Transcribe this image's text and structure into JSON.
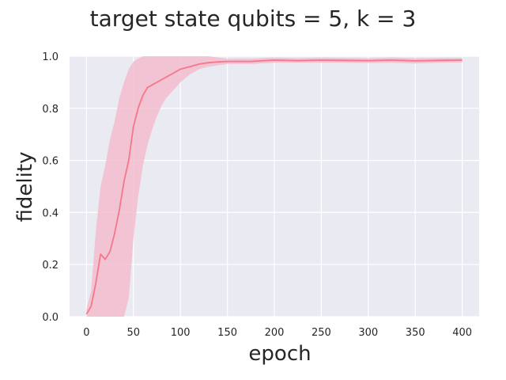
{
  "chart_data": {
    "type": "line",
    "title": "target state qubits = 5, k = 3",
    "xlabel": "epoch",
    "ylabel": "fidelity",
    "xlim": [
      -18,
      418
    ],
    "ylim": [
      0.0,
      1.0
    ],
    "xticks": [
      0,
      50,
      100,
      150,
      200,
      250,
      300,
      350,
      400
    ],
    "xtick_labels": [
      "0",
      "50",
      "100",
      "150",
      "200",
      "250",
      "300",
      "350",
      "400"
    ],
    "yticks": [
      0.0,
      0.2,
      0.4,
      0.6,
      0.8,
      1.0
    ],
    "ytick_labels": [
      "0.0",
      "0.2",
      "0.4",
      "0.6",
      "0.8",
      "1.0"
    ],
    "grid": true,
    "legend": "none",
    "colors": {
      "line": "#f6768a",
      "band": "#f3b6c8",
      "background": "#eaeaf2",
      "grid": "#ffffff"
    },
    "series": [
      {
        "name": "fidelity",
        "x": [
          0,
          5,
          10,
          15,
          20,
          25,
          30,
          35,
          40,
          45,
          50,
          55,
          60,
          65,
          70,
          75,
          80,
          85,
          90,
          95,
          100,
          110,
          120,
          130,
          140,
          150,
          175,
          200,
          225,
          250,
          275,
          300,
          325,
          350,
          375,
          400
        ],
        "mean": [
          0.01,
          0.04,
          0.13,
          0.24,
          0.22,
          0.25,
          0.32,
          0.41,
          0.52,
          0.6,
          0.73,
          0.8,
          0.85,
          0.88,
          0.89,
          0.9,
          0.91,
          0.92,
          0.93,
          0.94,
          0.95,
          0.96,
          0.97,
          0.975,
          0.978,
          0.98,
          0.98,
          0.985,
          0.983,
          0.985,
          0.984,
          0.983,
          0.985,
          0.982,
          0.984,
          0.985
        ],
        "lower": [
          0.0,
          0.0,
          0.0,
          0.0,
          0.0,
          0.0,
          0.0,
          0.0,
          0.0,
          0.07,
          0.3,
          0.46,
          0.58,
          0.66,
          0.72,
          0.77,
          0.81,
          0.84,
          0.86,
          0.88,
          0.9,
          0.93,
          0.95,
          0.96,
          0.965,
          0.97,
          0.97,
          0.975,
          0.975,
          0.975,
          0.975,
          0.974,
          0.975,
          0.972,
          0.975,
          0.976
        ],
        "upper": [
          0.03,
          0.1,
          0.33,
          0.5,
          0.58,
          0.68,
          0.75,
          0.84,
          0.9,
          0.95,
          0.98,
          0.99,
          1.0,
          1.0,
          1.0,
          1.0,
          1.0,
          1.0,
          1.0,
          1.0,
          1.0,
          1.0,
          1.0,
          1.0,
          0.995,
          0.99,
          0.99,
          0.995,
          0.992,
          0.995,
          0.993,
          0.992,
          0.995,
          0.992,
          0.993,
          0.994
        ]
      }
    ]
  }
}
